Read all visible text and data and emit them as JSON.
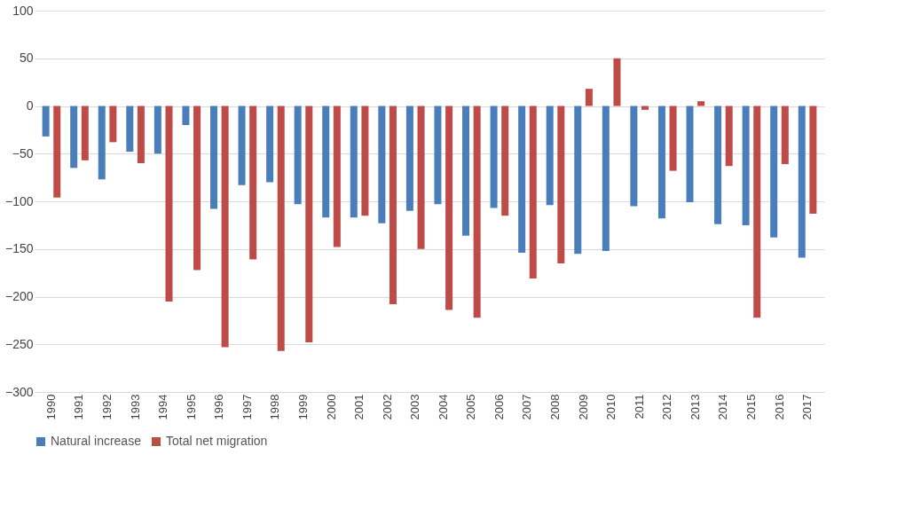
{
  "chart_data": {
    "type": "bar",
    "categories": [
      "1990",
      "1991",
      "1992",
      "1993",
      "1994",
      "1995",
      "1996",
      "1997",
      "1998",
      "1999",
      "2000",
      "2001",
      "2002",
      "2003",
      "2004",
      "2005",
      "2006",
      "2007",
      "2008",
      "2009",
      "2010",
      "2011",
      "2012",
      "2013",
      "2014",
      "2015",
      "2016",
      "2017"
    ],
    "series": [
      {
        "name": "Natural increase",
        "color": "#4a7ebb",
        "values": [
          -32,
          -65,
          -77,
          -48,
          -50,
          -20,
          -108,
          -83,
          -80,
          -103,
          -117,
          -117,
          -123,
          -110,
          -103,
          -136,
          -107,
          -154,
          -104,
          -155,
          -152,
          -105,
          -118,
          -101,
          -124,
          -125,
          -138,
          -159
        ]
      },
      {
        "name": "Total net migration",
        "color": "#be4b48",
        "values": [
          -96,
          -57,
          -38,
          -60,
          -205,
          -172,
          -253,
          -161,
          -257,
          -248,
          -148,
          -115,
          -208,
          -150,
          -214,
          -222,
          -115,
          -181,
          -165,
          18,
          50,
          -4,
          -68,
          5,
          -63,
          -222,
          -61,
          -113
        ]
      }
    ],
    "ylim": [
      -300,
      100
    ],
    "yticks": [
      -300,
      -250,
      -200,
      -150,
      -100,
      -50,
      0,
      50,
      100
    ],
    "grid": "y",
    "legend": "bottom"
  }
}
